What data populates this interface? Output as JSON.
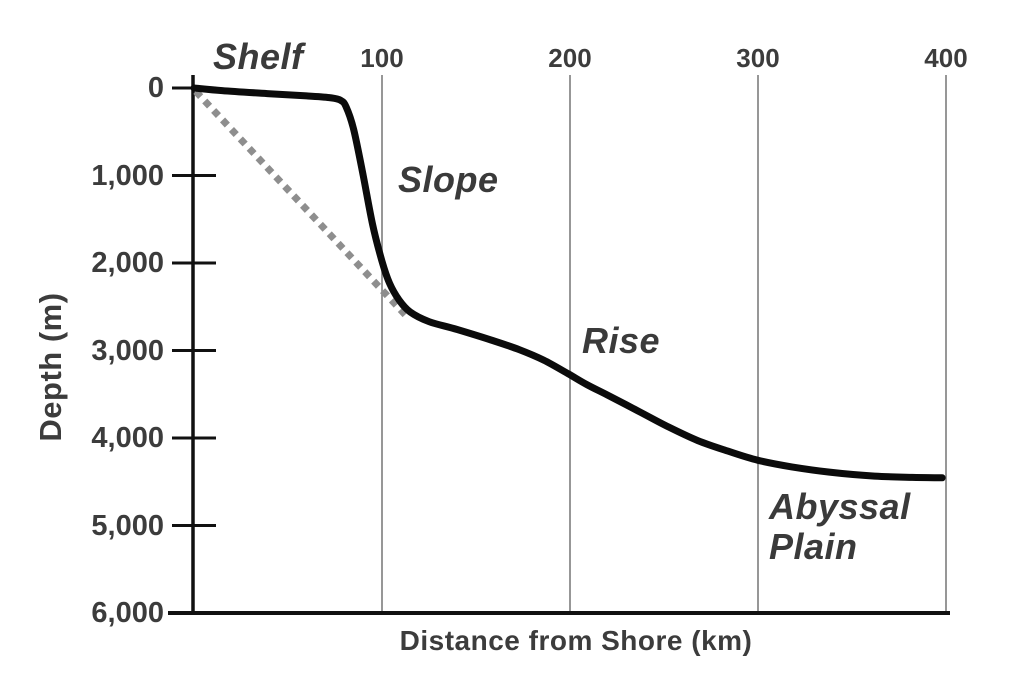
{
  "figure": {
    "background": "#ffffff",
    "text_color": "#3c3c3c",
    "curve_color": "#0b0b0b",
    "axis_color": "#111111",
    "grid_color": "#7d7d7d",
    "dashed_color": "#8e8e8e"
  },
  "labels": {
    "shelf": "Shelf",
    "slope": "Slope",
    "rise": "Rise",
    "abyssal": "Abyssal\nPlain",
    "xlabel": "Distance from Shore (km)",
    "ylabel": "Depth (m)"
  },
  "chart_data": {
    "type": "line",
    "title": "",
    "xlabel": "Distance from Shore (km)",
    "ylabel": "Depth (m)",
    "xlim": [
      0,
      400
    ],
    "ylim": [
      0,
      6000
    ],
    "y_inverted": true,
    "grid": "vertical-only",
    "x_ticks": [
      100,
      200,
      300,
      400
    ],
    "x_tick_labels": [
      "100",
      "200",
      "300",
      "400"
    ],
    "y_tick_values": [
      0,
      1000,
      2000,
      3000,
      4000,
      5000,
      6000
    ],
    "y_tick_labels": [
      "0",
      "1,000",
      "2,000",
      "3,000",
      "4,000",
      "5,000",
      "6,000"
    ],
    "series": [
      {
        "name": "seafloor-profile",
        "style": "solid",
        "color": "#0b0b0b",
        "points": [
          [
            0,
            0
          ],
          [
            15,
            30
          ],
          [
            40,
            65
          ],
          [
            60,
            90
          ],
          [
            72,
            110
          ],
          [
            78,
            140
          ],
          [
            81,
            220
          ],
          [
            85,
            480
          ],
          [
            90,
            1000
          ],
          [
            95,
            1560
          ],
          [
            100,
            1980
          ],
          [
            104,
            2230
          ],
          [
            109,
            2420
          ],
          [
            115,
            2560
          ],
          [
            125,
            2670
          ],
          [
            140,
            2760
          ],
          [
            158,
            2880
          ],
          [
            173,
            2990
          ],
          [
            186,
            3110
          ],
          [
            199,
            3265
          ],
          [
            209,
            3390
          ],
          [
            220,
            3510
          ],
          [
            237,
            3700
          ],
          [
            252,
            3870
          ],
          [
            268,
            4030
          ],
          [
            284,
            4150
          ],
          [
            300,
            4255
          ],
          [
            318,
            4330
          ],
          [
            338,
            4390
          ],
          [
            362,
            4435
          ],
          [
            382,
            4450
          ],
          [
            398,
            4455
          ]
        ]
      },
      {
        "name": "average-gradient-dotted",
        "style": "dotted",
        "color": "#8e8e8e",
        "points": [
          [
            1,
            40
          ],
          [
            114,
            2630
          ]
        ]
      }
    ],
    "annotations": [
      {
        "text": "Shelf",
        "x_km": 40,
        "depth_m": -250
      },
      {
        "text": "Slope",
        "x_km": 120,
        "depth_m": 1250
      },
      {
        "text": "Rise",
        "x_km": 222,
        "depth_m": 2950
      },
      {
        "text": "Abyssal Plain",
        "x_km": 335,
        "depth_m": 4900
      }
    ]
  }
}
